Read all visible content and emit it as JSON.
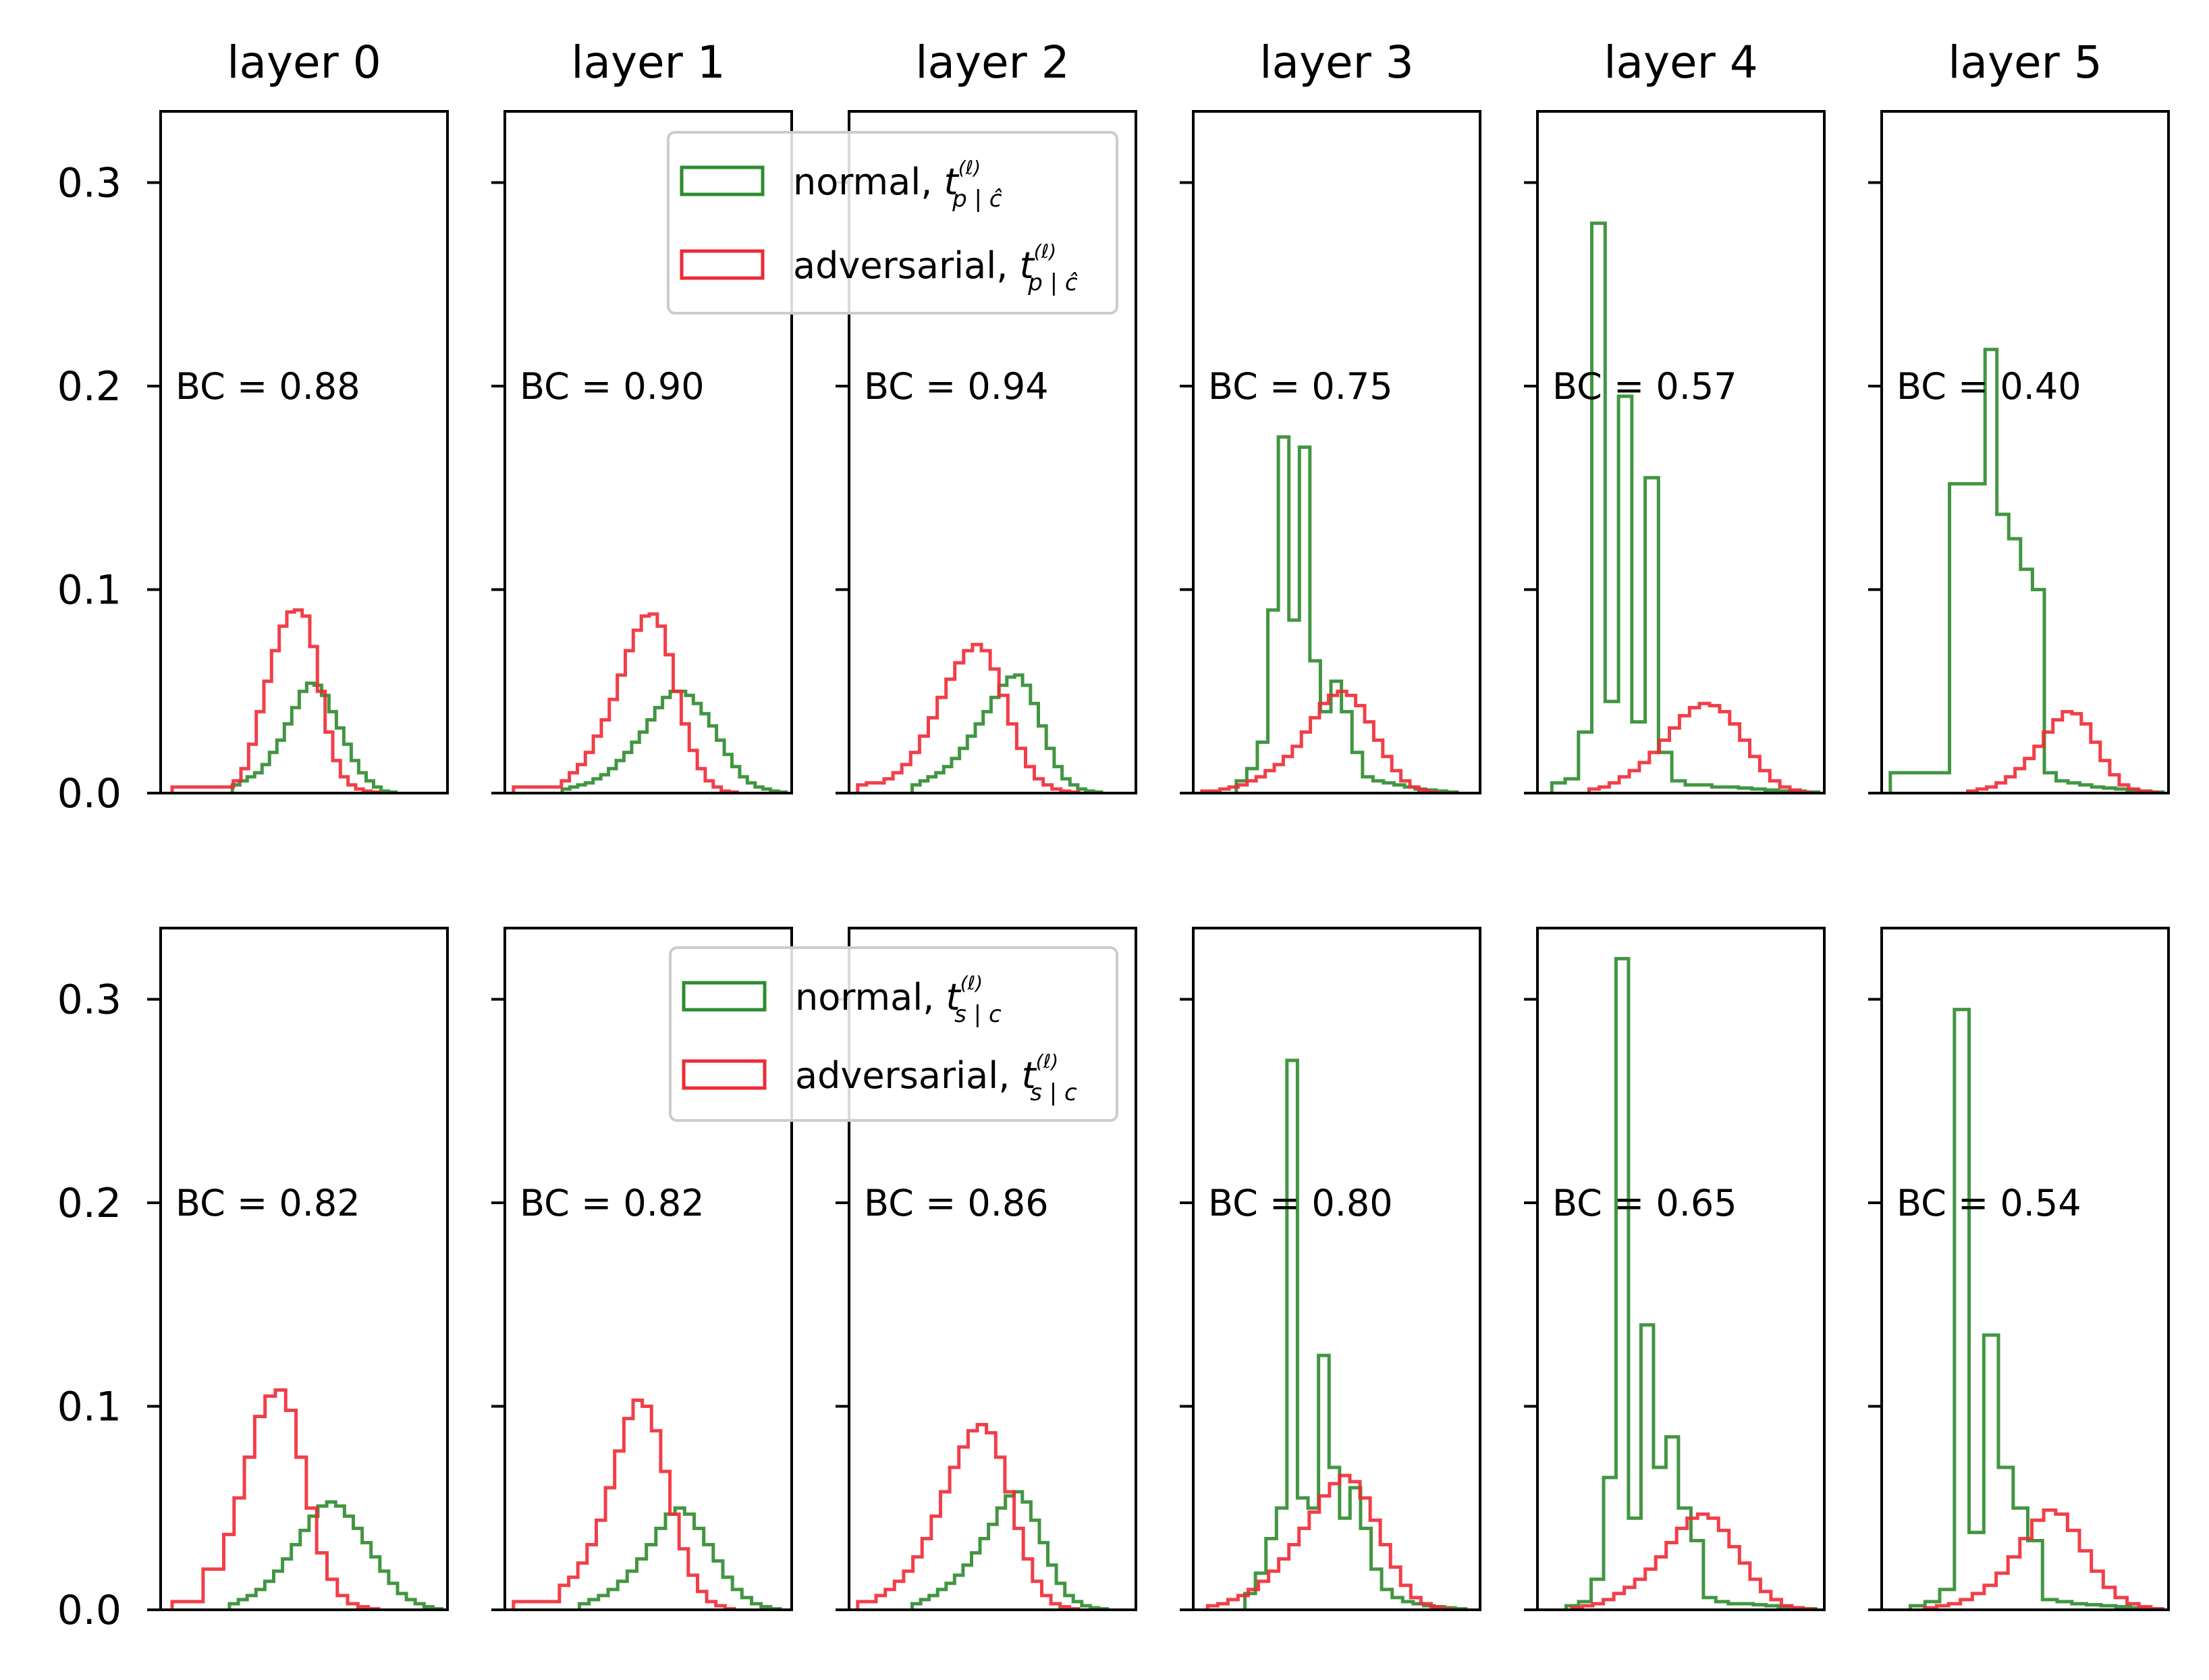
{
  "chart_data": {
    "type": "histogram-grid",
    "grid": "off",
    "y_ticks": [
      "0.0",
      "0.1",
      "0.2",
      "0.3"
    ],
    "ylim": [
      0,
      0.335
    ],
    "xlim": [
      0,
      1
    ],
    "columns": [
      "layer 0",
      "layer 1",
      "layer 2",
      "layer 3",
      "layer 4",
      "layer 5"
    ],
    "colors": {
      "normal": "#2e8b2e",
      "adversarial": "#ee2a35"
    },
    "legend_placement": "upper-right of layer 1 panel",
    "rows": [
      {
        "legend": [
          {
            "label": "normal, ",
            "sym": "t",
            "sup": "(ℓ)",
            "sub": "p | ĉ",
            "color": "#2e8b2e"
          },
          {
            "label": "adversarial, ",
            "sym": "t",
            "sup": "(ℓ)",
            "sub": "p | ĉ",
            "color": "#ee2a35"
          }
        ],
        "panels": [
          {
            "bc_text": "BC = 0.88",
            "normal": {
              "start": 0.25,
              "end": 0.82,
              "values": [
                0.004,
                0.006,
                0.008,
                0.01,
                0.014,
                0.02,
                0.026,
                0.034,
                0.042,
                0.05,
                0.054,
                0.053,
                0.048,
                0.04,
                0.032,
                0.024,
                0.016,
                0.01,
                0.006,
                0.003,
                0.001,
                0.0005
              ]
            },
            "adversarial": {
              "start": 0.04,
              "end": 0.76,
              "values": [
                0.003,
                0.003,
                0.003,
                0.003,
                0.003,
                0.003,
                0.003,
                0.003,
                0.006,
                0.012,
                0.024,
                0.04,
                0.055,
                0.07,
                0.082,
                0.089,
                0.09,
                0.087,
                0.072,
                0.05,
                0.03,
                0.016,
                0.008,
                0.004,
                0.002,
                0.001,
                0.0005
              ]
            }
          },
          {
            "bc_text": "BC = 0.90",
            "normal": {
              "start": 0.2,
              "end": 0.98,
              "values": [
                0.002,
                0.003,
                0.004,
                0.005,
                0.007,
                0.009,
                0.012,
                0.016,
                0.02,
                0.025,
                0.03,
                0.036,
                0.042,
                0.047,
                0.05,
                0.05,
                0.048,
                0.044,
                0.039,
                0.033,
                0.026,
                0.019,
                0.013,
                0.008,
                0.005,
                0.003,
                0.002,
                0.001,
                0.0005
              ]
            },
            "adversarial": {
              "start": 0.03,
              "end": 0.81,
              "values": [
                0.003,
                0.003,
                0.003,
                0.003,
                0.003,
                0.003,
                0.006,
                0.01,
                0.014,
                0.02,
                0.028,
                0.036,
                0.046,
                0.058,
                0.07,
                0.08,
                0.087,
                0.088,
                0.082,
                0.068,
                0.05,
                0.034,
                0.021,
                0.012,
                0.006,
                0.003,
                0.001,
                0.0005
              ]
            }
          },
          {
            "bc_text": "BC = 0.94",
            "normal": {
              "start": 0.22,
              "end": 0.88,
              "values": [
                0.004,
                0.006,
                0.008,
                0.01,
                0.013,
                0.017,
                0.022,
                0.028,
                0.034,
                0.04,
                0.047,
                0.053,
                0.057,
                0.058,
                0.053,
                0.044,
                0.033,
                0.022,
                0.013,
                0.007,
                0.004,
                0.002,
                0.001,
                0.0005
              ]
            },
            "adversarial": {
              "start": 0.03,
              "end": 0.8,
              "values": [
                0.004,
                0.005,
                0.005,
                0.007,
                0.01,
                0.014,
                0.02,
                0.028,
                0.037,
                0.047,
                0.056,
                0.064,
                0.07,
                0.073,
                0.07,
                0.061,
                0.048,
                0.034,
                0.022,
                0.013,
                0.007,
                0.004,
                0.002,
                0.001,
                0.0005
              ]
            }
          },
          {
            "bc_text": "BC = 0.75",
            "normal": {
              "start": 0.15,
              "end": 0.92,
              "values": [
                0.006,
                0.012,
                0.025,
                0.09,
                0.175,
                0.085,
                0.17,
                0.065,
                0.04,
                0.055,
                0.04,
                0.02,
                0.008,
                0.006,
                0.005,
                0.004,
                0.003,
                0.002,
                0.0015,
                0.001,
                0.0005
              ]
            },
            "adversarial": {
              "start": 0.03,
              "end": 0.85,
              "values": [
                0.001,
                0.001,
                0.002,
                0.003,
                0.004,
                0.006,
                0.008,
                0.011,
                0.014,
                0.018,
                0.023,
                0.03,
                0.037,
                0.044,
                0.048,
                0.05,
                0.048,
                0.043,
                0.035,
                0.026,
                0.018,
                0.011,
                0.006,
                0.003,
                0.0015,
                0.0005
              ]
            }
          },
          {
            "bc_text": "BC = 0.57",
            "normal": {
              "start": 0.05,
              "end": 0.98,
              "values": [
                0.005,
                0.007,
                0.03,
                0.28,
                0.045,
                0.195,
                0.035,
                0.155,
                0.02,
                0.006,
                0.004,
                0.004,
                0.003,
                0.003,
                0.0025,
                0.002,
                0.0015,
                0.001,
                0.001,
                0.0005
              ]
            },
            "adversarial": {
              "start": 0.18,
              "end": 0.95,
              "values": [
                0.002,
                0.003,
                0.005,
                0.008,
                0.011,
                0.015,
                0.02,
                0.026,
                0.032,
                0.038,
                0.042,
                0.044,
                0.043,
                0.04,
                0.034,
                0.026,
                0.018,
                0.011,
                0.006,
                0.003,
                0.0015,
                0.0005
              ]
            }
          },
          {
            "bc_text": "BC = 0.40",
            "normal": {
              "start": 0.03,
              "end": 0.98,
              "values": [
                0.01,
                0.01,
                0.01,
                0.01,
                0.01,
                0.152,
                0.152,
                0.152,
                0.218,
                0.137,
                0.125,
                0.11,
                0.1,
                0.01,
                0.006,
                0.005,
                0.004,
                0.003,
                0.0025,
                0.002,
                0.0015,
                0.001,
                0.0005
              ]
            },
            "adversarial": {
              "start": 0.3,
              "end": 0.96,
              "values": [
                0.001,
                0.002,
                0.003,
                0.005,
                0.008,
                0.012,
                0.017,
                0.023,
                0.03,
                0.036,
                0.04,
                0.039,
                0.034,
                0.025,
                0.016,
                0.009,
                0.004,
                0.002,
                0.001,
                0.0005
              ]
            }
          }
        ]
      },
      {
        "legend": [
          {
            "label": "normal, ",
            "sym": "t",
            "sup": "(ℓ)",
            "sub": "s | c",
            "color": "#2e8b2e"
          },
          {
            "label": "adversarial, ",
            "sym": "t",
            "sup": "(ℓ)",
            "sub": "s | c",
            "color": "#ee2a35"
          }
        ],
        "panels": [
          {
            "bc_text": "BC = 0.82",
            "normal": {
              "start": 0.24,
              "end": 0.98,
              "values": [
                0.003,
                0.005,
                0.007,
                0.01,
                0.014,
                0.019,
                0.025,
                0.032,
                0.039,
                0.046,
                0.051,
                0.053,
                0.051,
                0.046,
                0.04,
                0.033,
                0.026,
                0.019,
                0.013,
                0.008,
                0.005,
                0.003,
                0.0015,
                0.0005
              ]
            },
            "adversarial": {
              "start": 0.04,
              "end": 0.76,
              "values": [
                0.004,
                0.004,
                0.004,
                0.02,
                0.02,
                0.037,
                0.055,
                0.075,
                0.095,
                0.105,
                0.108,
                0.098,
                0.075,
                0.05,
                0.028,
                0.015,
                0.007,
                0.003,
                0.0015,
                0.0005
              ]
            }
          },
          {
            "bc_text": "BC = 0.82",
            "normal": {
              "start": 0.26,
              "end": 0.96,
              "values": [
                0.003,
                0.005,
                0.007,
                0.01,
                0.014,
                0.019,
                0.025,
                0.032,
                0.04,
                0.047,
                0.05,
                0.047,
                0.04,
                0.032,
                0.024,
                0.016,
                0.01,
                0.006,
                0.003,
                0.0015,
                0.0005
              ]
            },
            "adversarial": {
              "start": 0.03,
              "end": 0.8,
              "values": [
                0.004,
                0.004,
                0.004,
                0.004,
                0.004,
                0.012,
                0.016,
                0.023,
                0.032,
                0.044,
                0.06,
                0.078,
                0.094,
                0.103,
                0.1,
                0.088,
                0.068,
                0.047,
                0.03,
                0.017,
                0.009,
                0.004,
                0.002,
                0.0005
              ]
            }
          },
          {
            "bc_text": "BC = 0.86",
            "normal": {
              "start": 0.22,
              "end": 0.9,
              "values": [
                0.003,
                0.005,
                0.007,
                0.01,
                0.013,
                0.017,
                0.022,
                0.028,
                0.035,
                0.042,
                0.05,
                0.056,
                0.058,
                0.053,
                0.044,
                0.033,
                0.022,
                0.013,
                0.007,
                0.004,
                0.002,
                0.001,
                0.0005
              ]
            },
            "adversarial": {
              "start": 0.03,
              "end": 0.8,
              "values": [
                0.004,
                0.004,
                0.007,
                0.01,
                0.014,
                0.019,
                0.026,
                0.035,
                0.046,
                0.058,
                0.07,
                0.08,
                0.088,
                0.091,
                0.087,
                0.075,
                0.058,
                0.04,
                0.025,
                0.014,
                0.007,
                0.003,
                0.0015,
                0.0005
              ]
            }
          },
          {
            "bc_text": "BC = 0.80",
            "normal": {
              "start": 0.18,
              "end": 0.95,
              "values": [
                0.008,
                0.018,
                0.035,
                0.05,
                0.27,
                0.055,
                0.05,
                0.125,
                0.07,
                0.045,
                0.06,
                0.04,
                0.02,
                0.01,
                0.006,
                0.004,
                0.003,
                0.002,
                0.0015,
                0.001,
                0.0005
              ]
            },
            "adversarial": {
              "start": 0.05,
              "end": 0.9,
              "values": [
                0.002,
                0.003,
                0.005,
                0.007,
                0.01,
                0.014,
                0.019,
                0.025,
                0.032,
                0.04,
                0.048,
                0.056,
                0.062,
                0.066,
                0.063,
                0.055,
                0.044,
                0.032,
                0.021,
                0.012,
                0.006,
                0.003,
                0.0015,
                0.0005
              ]
            }
          },
          {
            "bc_text": "BC = 0.65",
            "normal": {
              "start": 0.1,
              "end": 0.97,
              "values": [
                0.002,
                0.004,
                0.015,
                0.065,
                0.32,
                0.045,
                0.14,
                0.07,
                0.085,
                0.05,
                0.034,
                0.006,
                0.004,
                0.003,
                0.003,
                0.0025,
                0.002,
                0.0015,
                0.001,
                0.0005
              ]
            },
            "adversarial": {
              "start": 0.12,
              "end": 0.96,
              "values": [
                0.001,
                0.002,
                0.003,
                0.005,
                0.008,
                0.011,
                0.015,
                0.02,
                0.026,
                0.033,
                0.04,
                0.045,
                0.047,
                0.045,
                0.039,
                0.031,
                0.023,
                0.015,
                0.009,
                0.005,
                0.002,
                0.001,
                0.0005
              ]
            }
          },
          {
            "bc_text": "BC = 0.54",
            "normal": {
              "start": 0.1,
              "end": 0.97,
              "values": [
                0.002,
                0.004,
                0.01,
                0.295,
                0.038,
                0.135,
                0.07,
                0.05,
                0.034,
                0.005,
                0.004,
                0.003,
                0.0025,
                0.002,
                0.0015,
                0.001,
                0.0005
              ]
            },
            "adversarial": {
              "start": 0.15,
              "end": 0.98,
              "values": [
                0.001,
                0.002,
                0.003,
                0.005,
                0.008,
                0.012,
                0.018,
                0.026,
                0.035,
                0.044,
                0.049,
                0.047,
                0.039,
                0.029,
                0.019,
                0.011,
                0.006,
                0.003,
                0.0015,
                0.0005
              ]
            }
          }
        ]
      }
    ]
  }
}
